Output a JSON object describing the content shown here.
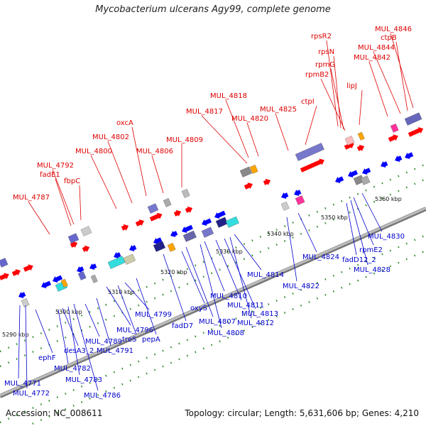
{
  "title": "Mycobacterium ulcerans Agy99, complete genome",
  "footer": {
    "accession": "Accession: NC_008611",
    "summary": "Topology: circular; Length: 5,631,606 bp; Genes: 4,210"
  },
  "colors": {
    "top_label": "#dd0000",
    "bottom_label": "#0000cc",
    "forward_gene": "#ff0000",
    "reverse_gene": "#0000ff",
    "backbone": "#999999",
    "tick": "#2e8b2e"
  },
  "ticks": [
    "5290 kbp",
    "5300 kbp",
    "5310 kbp",
    "5320 kbp",
    "5330 kbp",
    "5340 kbp",
    "5350 kbp",
    "5360 kbp"
  ],
  "top_labels": [
    "MUL_4787",
    "fadE1",
    "MUL_4792",
    "fbpC",
    "MUL_4800",
    "MUL_4802",
    "oxcA",
    "MUL_4806",
    "MUL_4809",
    "MUL_4817",
    "MUL_4818",
    "MUL_4820",
    "MUL_4825",
    "ctpI",
    "rpmB2",
    "rpmG",
    "rpsN",
    "rpsR2",
    "lipJ",
    "MUL_4842",
    "MUL_4844",
    "ctpB",
    "MUL_4846"
  ],
  "bottom_labels": [
    "MUL_4771",
    "MUL_4772",
    "ephF",
    "MUL_4782",
    "desA3_2",
    "MUL_4783",
    "MUL_4786",
    "MUL_4789",
    "MUL_4791",
    "MUL_4796",
    "treS",
    "MUL_4799",
    "pepA",
    "fadD7",
    "oxyS",
    "MUL_4807",
    "MUL_4808",
    "MUL_4810",
    "MUL_4811",
    "MUL_4813",
    "MUL_4812",
    "MUL_4814",
    "MUL_4822",
    "MUL_4824",
    "fadD12_2",
    "MUL_4828",
    "rpmE2",
    "MUL_4830"
  ]
}
